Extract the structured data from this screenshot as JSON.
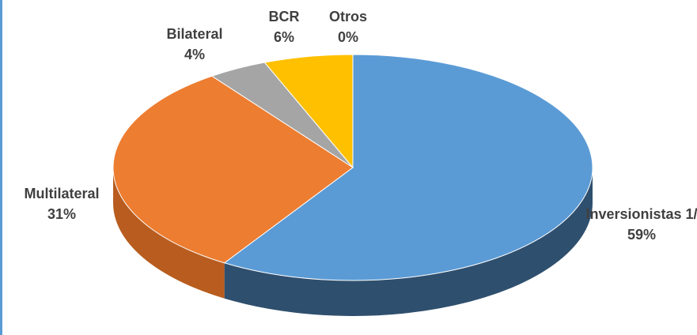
{
  "chart_data": {
    "type": "pie",
    "categories": [
      "Inversionistas 1/",
      "Multilateral",
      "Bilateral",
      "BCR",
      "Otros"
    ],
    "values": [
      59,
      31,
      4,
      6,
      0
    ],
    "value_labels": [
      "59%",
      "31%",
      "4%",
      "6%",
      "0%"
    ],
    "colors": [
      "#5b9bd5",
      "#ed7d31",
      "#a5a5a5",
      "#ffc000",
      "#4472c4"
    ],
    "side_colors": [
      "#2f4f6e",
      "#b85d1f",
      "#7a7a7a",
      "#c09000",
      "#2f4f8a"
    ]
  }
}
